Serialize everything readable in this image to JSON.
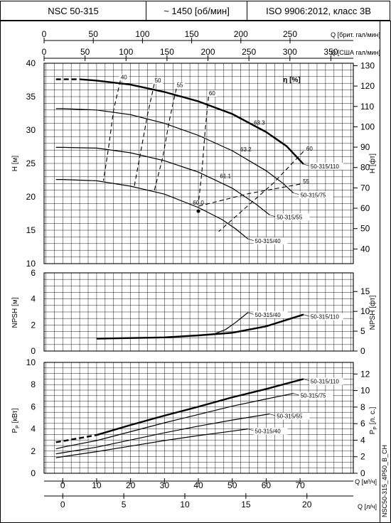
{
  "header": {
    "model": "NSC 50-315",
    "speed": "~ 1450 [об/мин]",
    "standard": "ISO 9906:2012, класс 3B"
  },
  "side_code": "NSC50-315_4P50_B_CH",
  "axes": {
    "q_brit": {
      "label": "Q [брит. гал/мин]",
      "ticks": [
        0,
        50,
        100,
        150,
        200,
        250
      ],
      "range": [
        0,
        314.3
      ]
    },
    "q_us": {
      "label": "Q [США гал/мин]",
      "ticks": [
        0,
        50,
        100,
        150,
        200,
        250,
        300,
        350
      ],
      "range": [
        0,
        377.4
      ]
    },
    "q_m3h": {
      "label": "Q [м³/ч]",
      "ticks": [
        0,
        10,
        20,
        30,
        40,
        50,
        60,
        70
      ],
      "range": [
        -5.5,
        85.7
      ]
    },
    "q_ls": {
      "label": "Q [л/ч]",
      "ticks": [
        0,
        5,
        10,
        15,
        20
      ],
      "range": [
        -1.53,
        23.8
      ]
    },
    "h_m": {
      "label": "H [м]",
      "ticks": [
        10,
        15,
        20,
        25,
        30,
        35,
        40
      ],
      "range": [
        10,
        40
      ]
    },
    "h_ft": {
      "label": "H [фт]",
      "ticks": [
        40,
        50,
        60,
        70,
        80,
        90,
        100,
        110,
        120,
        130
      ],
      "range": [
        32.8,
        131.2
      ]
    },
    "npsh_m": {
      "label": "NPSH [м]",
      "ticks": [
        0,
        2,
        4,
        6
      ],
      "range": [
        0,
        6
      ]
    },
    "npsh_ft": {
      "label": "NPSH [фт]",
      "ticks": [
        0,
        5,
        10,
        15
      ],
      "range": [
        0,
        19.7
      ]
    },
    "p_kw": {
      "label": "P",
      "sub": "P",
      "unit": " [кВт]",
      "ticks": [
        0,
        2,
        4,
        6,
        8,
        10
      ],
      "range": [
        0,
        10
      ]
    },
    "p_hp": {
      "label": "P",
      "sub": "P",
      "unit": " [л. с.]",
      "ticks": [
        0,
        2,
        4,
        6,
        8,
        10,
        12
      ],
      "range": [
        0,
        13.4
      ]
    }
  },
  "eta_label": "η [%]",
  "chart_data": [
    {
      "type": "line",
      "name": "head",
      "series": [
        {
          "name": "50-315/110",
          "x": [
            -2,
            5,
            10,
            20,
            30,
            40,
            50,
            60,
            66,
            71
          ],
          "y": [
            37.6,
            37.6,
            37.4,
            36.8,
            35.7,
            34.3,
            32.4,
            29.7,
            27.6,
            24.9
          ],
          "dashed_to": 5
        },
        {
          "name": "50-315/75",
          "x": [
            -2,
            0,
            10,
            20,
            30,
            40,
            50,
            60,
            65,
            68
          ],
          "y": [
            33.2,
            33.2,
            33.0,
            32.3,
            31.0,
            29.2,
            26.9,
            23.9,
            22.0,
            20.6
          ]
        },
        {
          "name": "50-315/55",
          "x": [
            -2,
            0,
            10,
            20,
            30,
            40,
            50,
            57,
            61
          ],
          "y": [
            27.4,
            27.4,
            27.3,
            26.6,
            25.4,
            23.7,
            21.3,
            18.9,
            17.3
          ]
        },
        {
          "name": "50-315/40",
          "x": [
            -2,
            0,
            10,
            20,
            30,
            40,
            47,
            51,
            54.6
          ],
          "y": [
            22.6,
            22.6,
            22.4,
            21.6,
            20.4,
            18.4,
            16.6,
            15.2,
            13.7
          ]
        }
      ],
      "efficiency": [
        {
          "label": "40",
          "points": [
            [
              17.0,
              37.4
            ],
            [
              15.0,
              33.0
            ],
            [
              13.5,
              27.3
            ],
            [
              12.0,
              22.4
            ]
          ]
        },
        {
          "label": "50",
          "points": [
            [
              27.0,
              36.9
            ],
            [
              25.0,
              32.3
            ],
            [
              23.0,
              26.7
            ],
            [
              21.0,
              21.3
            ]
          ]
        },
        {
          "label": "55",
          "points": [
            [
              33.5,
              36.2
            ],
            [
              31.5,
              31.6
            ],
            [
              29.5,
              25.9
            ],
            [
              27.0,
              20.9
            ]
          ]
        },
        {
          "label": "60",
          "points": [
            [
              43.0,
              35.0
            ],
            [
              42.0,
              30.0
            ],
            [
              41.0,
              23.5
            ],
            [
              40.0,
              19.0
            ]
          ]
        }
      ],
      "efficiency_right": [
        {
          "label": "60",
          "points": [
            [
              71.0,
              26.8
            ],
            [
              62.0,
              22.0
            ],
            [
              52.0,
              17.5
            ],
            [
              46.0,
              14.8
            ]
          ]
        },
        {
          "label": "55",
          "points": [
            [
              70.0,
              21.9
            ],
            [
              55.0,
              20.5
            ],
            [
              40.0,
              18.6
            ]
          ]
        }
      ],
      "bep_points": [
        {
          "label": "63.3",
          "x": 58.0,
          "y": 30.5
        },
        {
          "label": "63.2",
          "x": 54.0,
          "y": 26.5
        },
        {
          "label": "61.1",
          "x": 48.0,
          "y": 22.5
        },
        {
          "label": "60.0",
          "x": 40.0,
          "y": 18.5
        }
      ]
    },
    {
      "type": "line",
      "name": "npsh",
      "series": [
        {
          "name": "50-315/110",
          "x": [
            10,
            20,
            30,
            40,
            50,
            60,
            71
          ],
          "y": [
            0.95,
            1.0,
            1.05,
            1.2,
            1.4,
            1.9,
            2.8
          ]
        },
        {
          "name": "50-315/40",
          "x": [
            45,
            48,
            51,
            54.6
          ],
          "y": [
            1.35,
            1.65,
            2.2,
            2.95
          ]
        }
      ]
    },
    {
      "type": "line",
      "name": "power",
      "series": [
        {
          "name": "50-315/110",
          "x": [
            -2,
            0,
            10,
            20,
            30,
            40,
            50,
            60,
            71
          ],
          "y": [
            2.8,
            2.9,
            3.45,
            4.35,
            5.2,
            6.0,
            6.85,
            7.6,
            8.5
          ],
          "dashed_to": 10
        },
        {
          "name": "50-315/75",
          "x": [
            -2,
            0,
            10,
            20,
            30,
            40,
            50,
            60,
            68
          ],
          "y": [
            2.2,
            2.35,
            2.95,
            3.75,
            4.55,
            5.3,
            6.05,
            6.7,
            7.2
          ]
        },
        {
          "name": "50-315/55",
          "x": [
            -2,
            0,
            10,
            20,
            30,
            40,
            50,
            61
          ],
          "y": [
            1.75,
            1.85,
            2.35,
            3.0,
            3.65,
            4.25,
            4.8,
            5.35
          ]
        },
        {
          "name": "50-315/40",
          "x": [
            -2,
            0,
            10,
            20,
            30,
            40,
            50,
            54.6
          ],
          "y": [
            1.4,
            1.5,
            1.95,
            2.45,
            2.95,
            3.4,
            3.8,
            4.0
          ]
        }
      ]
    }
  ]
}
